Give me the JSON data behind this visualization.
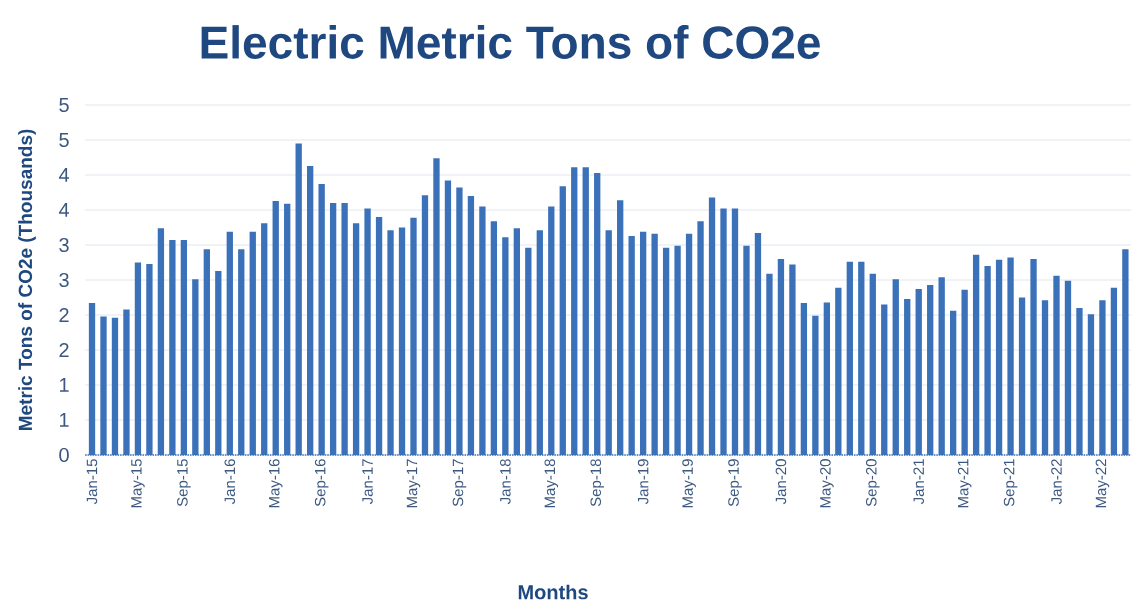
{
  "chart_data": {
    "type": "bar",
    "title": "Electric Metric Tons of CO2e",
    "xlabel": "Months",
    "ylabel": "Metric Tons of CO2e (Thousands)",
    "categories": [
      "Jan-15",
      null,
      null,
      null,
      "May-15",
      null,
      null,
      null,
      "Sep-15",
      null,
      null,
      null,
      "Jan-16",
      null,
      null,
      null,
      "May-16",
      null,
      null,
      null,
      "Sep-16",
      null,
      null,
      null,
      "Jan-17",
      null,
      null,
      null,
      "May-17",
      null,
      null,
      null,
      "Sep-17",
      null,
      null,
      null,
      "Jan-18",
      null,
      null,
      null,
      "May-18",
      null,
      null,
      null,
      "Sep-18",
      null,
      null,
      null,
      "Jan-19",
      null,
      null,
      null,
      "May-19",
      null,
      null,
      null,
      "Sep-19",
      null,
      null,
      null,
      "Jan-20",
      null,
      null,
      null,
      "May-20",
      null,
      null,
      null,
      "Sep-20",
      null,
      null,
      null,
      "Jan-21",
      null,
      null,
      null,
      "May-21",
      null,
      null,
      null,
      "Sep-21",
      null,
      null,
      null,
      "Jan-22",
      null,
      null,
      null,
      "May-22",
      null,
      null
    ],
    "values": [
      2.17,
      1.98,
      1.96,
      2.08,
      2.75,
      2.73,
      3.24,
      3.07,
      3.07,
      2.51,
      2.94,
      2.63,
      3.19,
      2.94,
      3.19,
      3.31,
      3.63,
      3.59,
      4.45,
      4.13,
      3.87,
      3.6,
      3.6,
      3.31,
      3.52,
      3.4,
      3.21,
      3.25,
      3.39,
      3.71,
      4.24,
      3.92,
      3.82,
      3.7,
      3.55,
      3.34,
      3.11,
      3.24,
      2.96,
      3.21,
      3.55,
      3.84,
      4.11,
      4.11,
      4.03,
      3.21,
      3.64,
      3.13,
      3.19,
      3.16,
      2.96,
      2.99,
      3.16,
      3.34,
      3.68,
      3.52,
      3.52,
      2.99,
      3.17,
      2.59,
      2.8,
      2.72,
      2.17,
      1.99,
      2.18,
      2.39,
      2.76,
      2.76,
      2.59,
      2.15,
      2.51,
      2.23,
      2.37,
      2.43,
      2.54,
      2.06,
      2.36,
      2.86,
      2.7,
      2.79,
      2.82,
      2.25,
      2.8,
      2.21,
      2.56,
      2.49,
      2.1,
      2.01,
      2.21,
      2.39,
      2.94
    ],
    "color": "#3a71b8",
    "ylim": [
      0,
      5
    ],
    "yticks": [
      0,
      {
        "value": 0.5,
        "label": "1"
      },
      1,
      {
        "value": 1.5,
        "label": "2"
      },
      2,
      {
        "value": 2.5,
        "label": "3"
      },
      3,
      {
        "value": 3.5,
        "label": "4"
      },
      4,
      {
        "value": 4.5,
        "label": "5"
      },
      5
    ],
    "grid": "y"
  }
}
